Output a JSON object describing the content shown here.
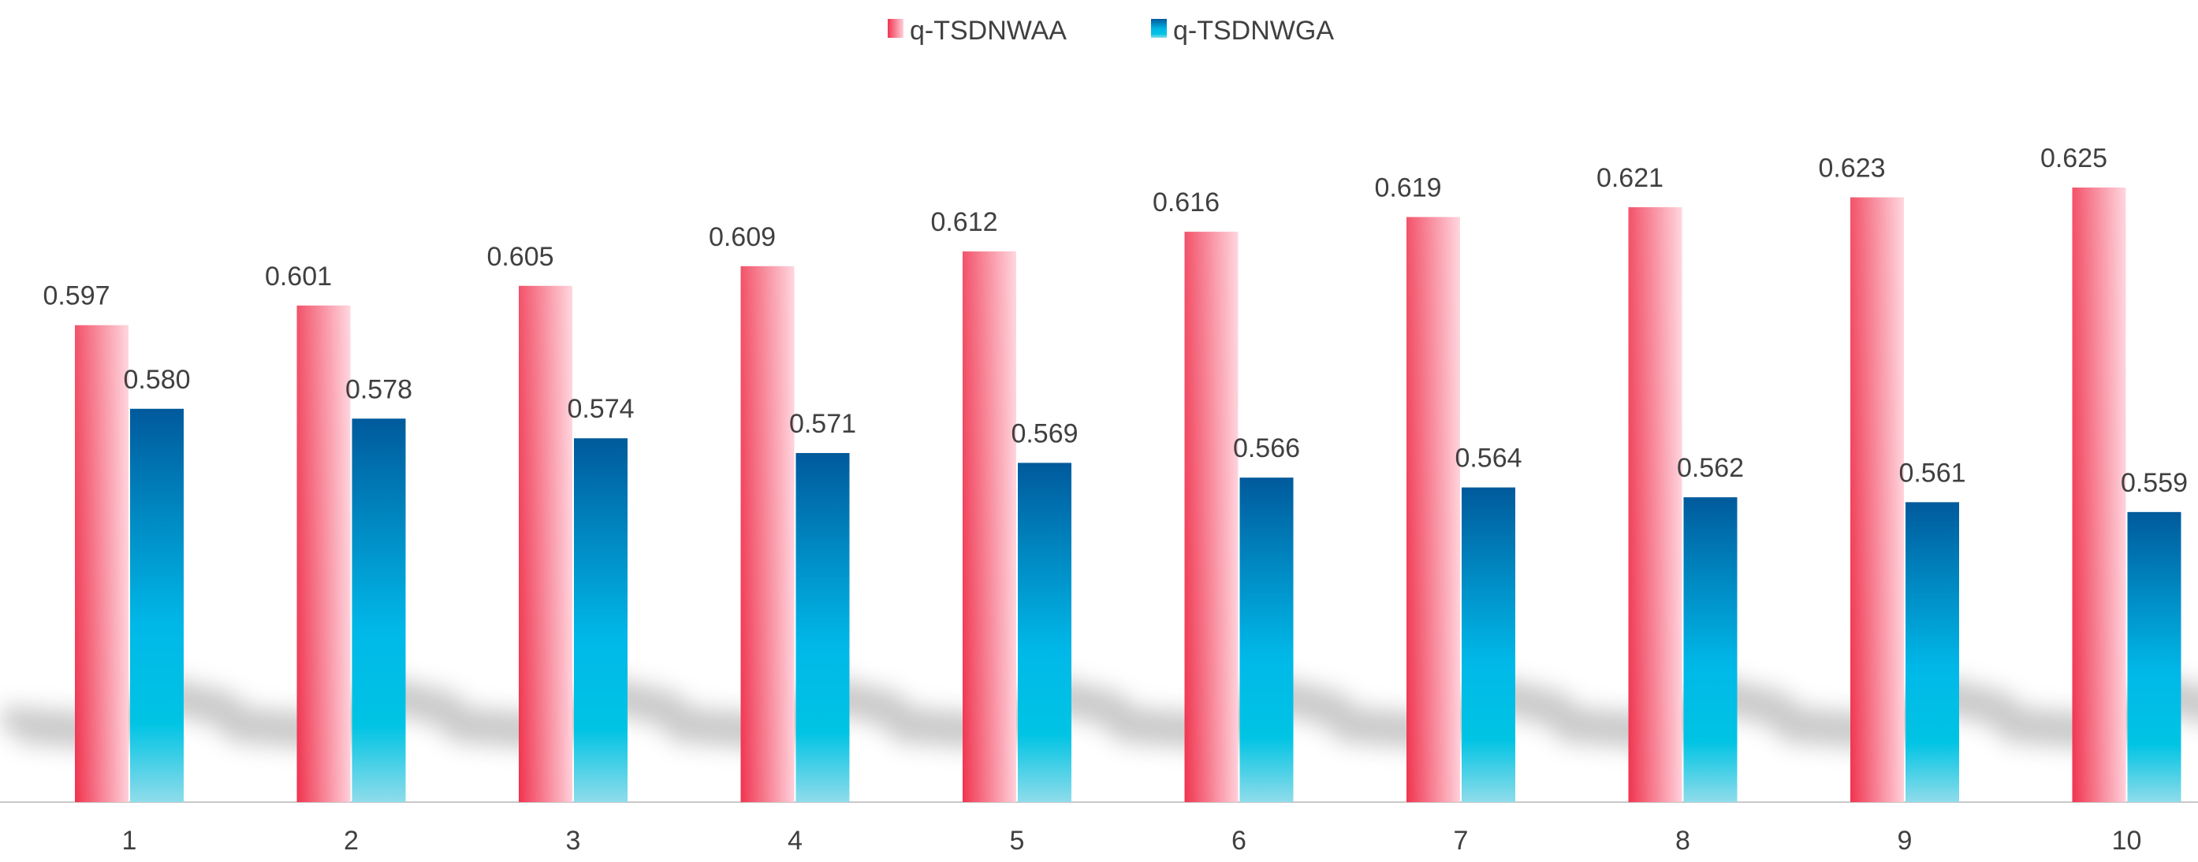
{
  "chart_data": {
    "type": "bar",
    "title": "",
    "xlabel": "",
    "ylabel": "",
    "categories": [
      "1",
      "2",
      "3",
      "4",
      "5",
      "6",
      "7",
      "8",
      "9",
      "10"
    ],
    "series": [
      {
        "name": "q-TSDNWAA",
        "values": [
          0.597,
          0.601,
          0.605,
          0.609,
          0.612,
          0.616,
          0.619,
          0.621,
          0.623,
          0.625
        ]
      },
      {
        "name": "q-TSDNWGA",
        "values": [
          0.58,
          0.578,
          0.574,
          0.571,
          0.569,
          0.566,
          0.564,
          0.562,
          0.561,
          0.559
        ]
      }
    ],
    "data_labels": [
      [
        "0.597",
        "0.601",
        "0.605",
        "0.609",
        "0.612",
        "0.616",
        "0.619",
        "0.621",
        "0.623",
        "0.625"
      ],
      [
        "0.580",
        "0.578",
        "0.574",
        "0.571",
        "0.569",
        "0.566",
        "0.564",
        "0.562",
        "0.561",
        "0.559"
      ]
    ],
    "ylim": [
      0.5,
      0.64
    ],
    "grid": false,
    "legend_position": "top-center",
    "colors": {
      "series1_top": "#ffd0da",
      "series1_bottom": "#f0344f",
      "series2_top": "#005a9c",
      "series2_mid": "#00b8e8",
      "series2_bottom": "#8fdcea",
      "text": "#404040",
      "axis": "#b0b0b0"
    }
  }
}
